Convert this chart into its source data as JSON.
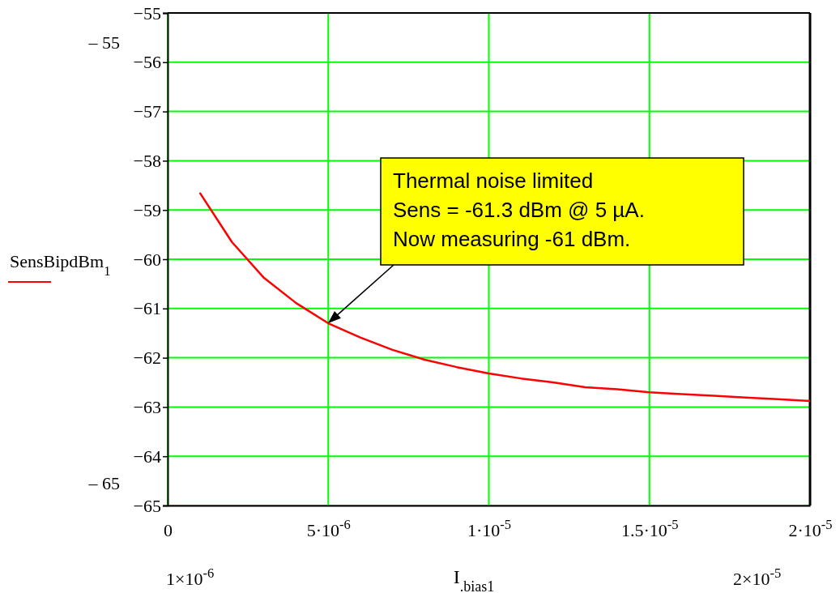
{
  "chart_data": {
    "type": "line",
    "x": [
      1e-06,
      2e-06,
      3e-06,
      4e-06,
      5e-06,
      6e-06,
      7e-06,
      8e-06,
      9e-06,
      1e-05,
      1.1e-05,
      1.2e-05,
      1.3e-05,
      1.4e-05,
      1.5e-05,
      1.6e-05,
      1.7e-05,
      1.8e-05,
      1.9e-05,
      2e-05
    ],
    "series": [
      {
        "name": "SensBipdBm$_{1}$",
        "color": "#ff0000",
        "values": [
          -58.65,
          -59.65,
          -60.38,
          -60.89,
          -61.3,
          -61.59,
          -61.84,
          -62.04,
          -62.19,
          -62.32,
          -62.42,
          -62.5,
          -62.6,
          -62.64,
          -62.7,
          -62.74,
          -62.77,
          -62.81,
          -62.84,
          -62.88
        ]
      }
    ],
    "xlabel": "I$_{.bias1}$",
    "xlim": [
      0,
      2e-05
    ],
    "xticks": [
      0,
      {
        "value": 5e-06,
        "label": "5·10$^{-6}$"
      },
      {
        "value": 1e-05,
        "label": "1·10$^{-5}$"
      },
      {
        "value": 1.5e-05,
        "label": "1.5·10$^{-5}$"
      },
      {
        "value": 2e-05,
        "label": "2·10$^{-5}$"
      }
    ],
    "ylim": [
      -65,
      -55
    ],
    "yticks": [
      -65,
      -64,
      -63,
      -62,
      -61,
      -60,
      -59,
      -58,
      -57,
      -56,
      -55
    ],
    "grid": true,
    "legend": "left",
    "marker": "none",
    "line_style": "solid",
    "annotations": [
      "Thermal noise limited\nSens = -61.3 dBm @ 5 µA.\nNow measuring -61 dBm.",
      "– 55",
      "– 65",
      "1×10$^{-6}$",
      "2×10$^{-5}$"
    ]
  }
}
